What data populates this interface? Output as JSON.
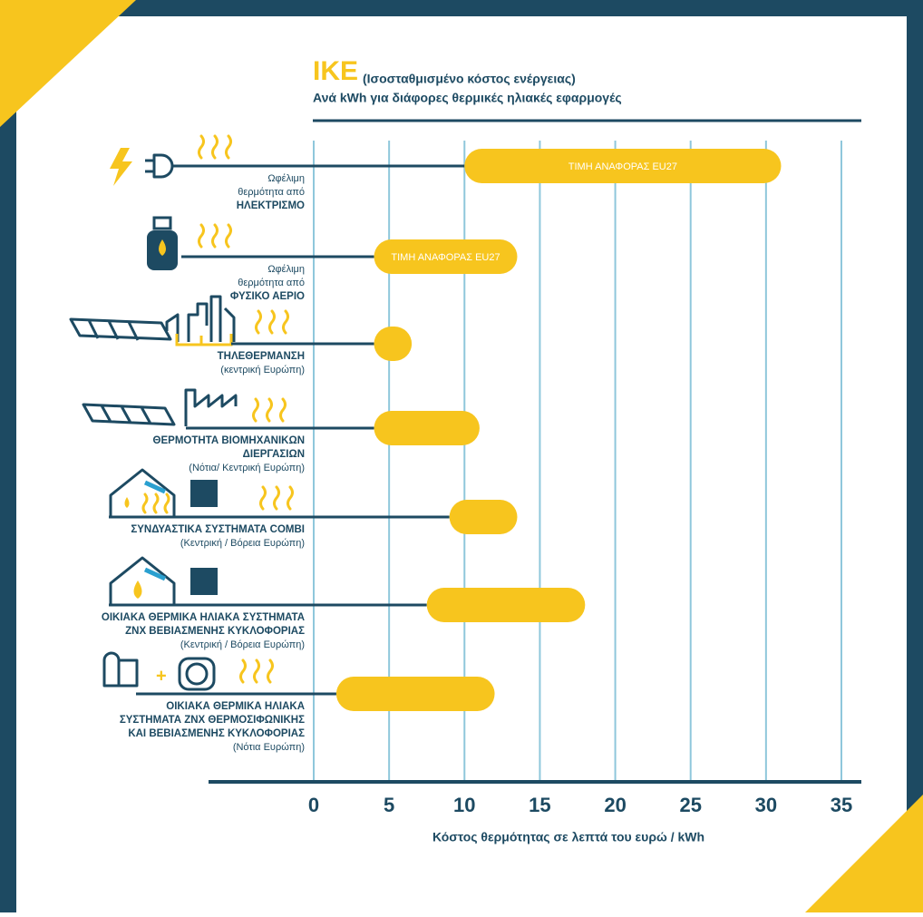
{
  "chart_data": {
    "type": "range-bar",
    "title": "ΙΚΕ",
    "title_note": "(Ισοσταθμισμένο κόστος ενέργειας)",
    "subtitle": "Ανά kWh για διάφορες θερμικές ηλιακές εφαρμογές",
    "x_label": "Κόστος θερμότητας σε λεπτά του ευρώ / kWh",
    "categories": [
      [
        "Ωφέλιμη",
        "θερμότητα από",
        "ΗΛΕΚΤΡΙΣΜΟ"
      ],
      [
        "Ωφέλιμη",
        "θερμότητα από",
        "ΦΥΣΙΚΟ ΑΕΡΙΟ"
      ],
      [
        "ΤΗΛΕΘΕΡΜΑΝΣΗ",
        "(κεντρική Ευρώπη)"
      ],
      [
        "ΘΕΡΜΟΤΗΤΑ ΒΙΟΜΗΧΑΝΙΚΩΝ",
        "ΔΙΕΡΓΑΣΙΩΝ",
        "(Νότια/ Κεντρική Ευρώπη)"
      ],
      [
        "ΣΥΝΔΥΑΣΤΙΚΑ ΣΥΣΤΗΜΑΤΑ COMBI",
        "(Κεντρική / Βόρεια Ευρώπη)"
      ],
      [
        "ΟΙΚΙΑΚΑ ΘΕΡΜΙΚΑ ΗΛΙΑΚΑ ΣΥΣΤΗΜΑΤΑ",
        "ΖΝΧ ΒΕΒΙΑΣΜΕΝΗΣ ΚΥΚΛΟΦΟΡΙΑΣ",
        "(Κεντρική / Βόρεια Ευρώπη)"
      ],
      [
        "ΟΙΚΙΑΚΑ ΘΕΡΜΙΚΑ ΗΛΙΑΚΑ",
        "ΣΥΣΤΗΜΑΤΑ ΖΝΧ ΘΕΡΜΟΣΙΦΩΝΙΚΗΣ",
        "ΚΑΙ ΒΕΒΙΑΣΜΕΝΗΣ ΚΥΚΛΟΦΟΡΙΑΣ",
        "(Νότια Ευρώπη)"
      ]
    ],
    "values": [
      [
        10,
        31
      ],
      [
        4,
        13.5
      ],
      [
        4,
        6.5
      ],
      [
        4,
        11
      ],
      [
        9,
        13.5
      ],
      [
        7.5,
        18
      ],
      [
        1.5,
        12
      ]
    ],
    "bar_labels": [
      "ΤΙΜΗ ΑΝΑΦΟΡΑΣ  EU27",
      "ΤΙΜΗ ΑΝΑΦΟΡΑΣ  EU27",
      null,
      null,
      null,
      null,
      null
    ],
    "color": "#f7c51e",
    "xlim": [
      0,
      35
    ],
    "xticks": [
      0,
      5,
      10,
      15,
      20,
      25,
      30,
      35
    ],
    "grid": true
  }
}
